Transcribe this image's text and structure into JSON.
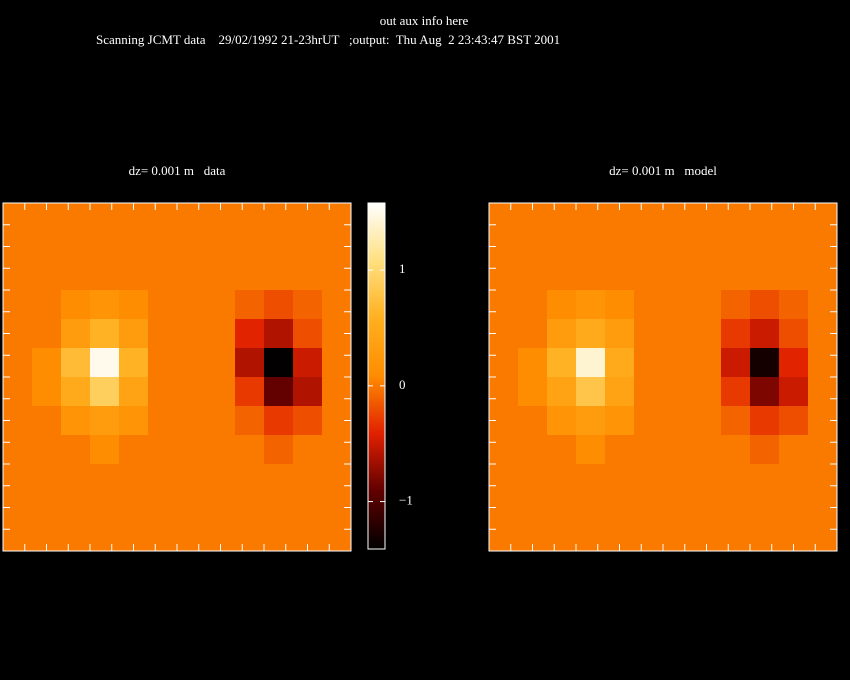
{
  "header": {
    "line1": "out aux info here",
    "line2": "Scanning JCMT data    29/02/1992 21-23hrUT   ;output:  Thu Aug  2 23:43:47 BST 2001"
  },
  "colorbar": {
    "lim": [
      -1.41,
      1.58
    ],
    "ticks": [
      {
        "value": 1,
        "label": "1"
      },
      {
        "value": 0,
        "label": "0"
      },
      {
        "value": -1,
        "label": "−1"
      }
    ],
    "colormap": [
      "#000000",
      "#600000",
      "#e02000",
      "#ff8c00",
      "#ffb020",
      "#ffe080",
      "#ffffff"
    ]
  },
  "chart_data": [
    {
      "type": "heatmap",
      "title": "dz= 0.001 m   data",
      "values": [
        [
          0,
          0,
          0,
          0,
          0,
          0,
          0,
          0,
          0,
          0,
          0,
          0
        ],
        [
          0,
          0,
          0,
          0,
          0,
          0,
          0,
          0,
          0,
          0,
          0,
          0
        ],
        [
          0,
          0,
          0,
          0,
          0,
          0,
          0,
          0,
          0,
          0,
          0,
          0
        ],
        [
          0,
          0,
          0.1,
          0.2,
          0.1,
          0,
          0,
          0,
          -0.1,
          -0.2,
          -0.1,
          0
        ],
        [
          0,
          0,
          0.3,
          0.6,
          0.3,
          0,
          0,
          0,
          -0.4,
          -0.6,
          -0.2,
          0
        ],
        [
          0,
          0.1,
          0.7,
          1.5,
          0.6,
          0,
          0,
          0,
          -0.6,
          -1.4,
          -0.5,
          0
        ],
        [
          0,
          0.1,
          0.5,
          0.9,
          0.4,
          0,
          0,
          0,
          -0.3,
          -0.9,
          -0.6,
          0
        ],
        [
          0,
          0,
          0.2,
          0.3,
          0.2,
          0,
          0,
          0,
          -0.1,
          -0.3,
          -0.2,
          0
        ],
        [
          0,
          0,
          0,
          0.1,
          0,
          0,
          0,
          0,
          0,
          -0.1,
          0,
          0
        ],
        [
          0,
          0,
          0,
          0,
          0,
          0,
          0,
          0,
          0,
          0,
          0,
          0
        ],
        [
          0,
          0,
          0,
          0,
          0,
          0,
          0,
          0,
          0,
          0,
          0,
          0
        ],
        [
          0,
          0,
          0,
          0,
          0,
          0,
          0,
          0,
          0,
          0,
          0,
          0
        ]
      ]
    },
    {
      "type": "heatmap",
      "title": "dz= 0.001 m   model",
      "values": [
        [
          0,
          0,
          0,
          0,
          0,
          0,
          0,
          0,
          0,
          0,
          0,
          0
        ],
        [
          0,
          0,
          0,
          0,
          0,
          0,
          0,
          0,
          0,
          0,
          0,
          0
        ],
        [
          0,
          0,
          0,
          0,
          0,
          0,
          0,
          0,
          0,
          0,
          0,
          0
        ],
        [
          0,
          0,
          0.1,
          0.2,
          0.1,
          0,
          0,
          0,
          -0.1,
          -0.2,
          -0.1,
          0
        ],
        [
          0,
          0,
          0.3,
          0.5,
          0.3,
          0,
          0,
          0,
          -0.3,
          -0.5,
          -0.2,
          0
        ],
        [
          0,
          0.1,
          0.6,
          1.4,
          0.5,
          0,
          0,
          0,
          -0.5,
          -1.3,
          -0.4,
          0
        ],
        [
          0,
          0.1,
          0.4,
          0.8,
          0.4,
          0,
          0,
          0,
          -0.3,
          -0.8,
          -0.5,
          0
        ],
        [
          0,
          0,
          0.2,
          0.3,
          0.2,
          0,
          0,
          0,
          -0.1,
          -0.3,
          -0.2,
          0
        ],
        [
          0,
          0,
          0,
          0.1,
          0,
          0,
          0,
          0,
          0,
          -0.1,
          0,
          0
        ],
        [
          0,
          0,
          0,
          0,
          0,
          0,
          0,
          0,
          0,
          0,
          0,
          0
        ],
        [
          0,
          0,
          0,
          0,
          0,
          0,
          0,
          0,
          0,
          0,
          0,
          0
        ],
        [
          0,
          0,
          0,
          0,
          0,
          0,
          0,
          0,
          0,
          0,
          0,
          0
        ]
      ]
    }
  ]
}
